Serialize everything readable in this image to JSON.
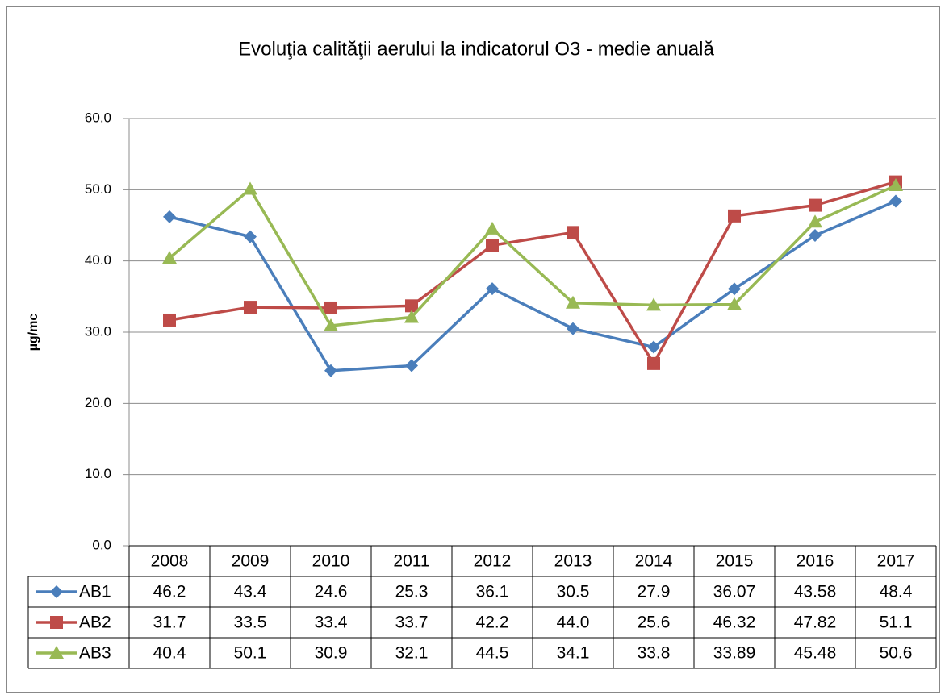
{
  "chart_data": {
    "type": "line",
    "title": "Evoluţia calităţii aerului la indicatorul O3 - medie anuală",
    "y_label": "µg/mc",
    "categories": [
      "2008",
      "2009",
      "2010",
      "2011",
      "2012",
      "2013",
      "2014",
      "2015",
      "2016",
      "2017"
    ],
    "series": [
      {
        "name": "AB1",
        "color": "#4a7ebb",
        "values": [
          46.2,
          43.4,
          24.6,
          25.3,
          36.1,
          30.5,
          27.9,
          36.07,
          43.58,
          48.4
        ],
        "value_labels": [
          "46.2",
          "43.4",
          "24.6",
          "25.3",
          "36.1",
          "30.5",
          "27.9",
          "36.07",
          "43.58",
          "48.4"
        ]
      },
      {
        "name": "AB2",
        "color": "#be4b48",
        "values": [
          31.7,
          33.5,
          33.4,
          33.7,
          42.2,
          44,
          25.6,
          46.32,
          47.82,
          51.1
        ],
        "value_labels": [
          "31.7",
          "33.5",
          "33.4",
          "33.7",
          "42.2",
          "44.0",
          "25.6",
          "46.32",
          "47.82",
          "51.1"
        ]
      },
      {
        "name": "AB3",
        "color": "#98b954",
        "values": [
          40.4,
          50.1,
          30.9,
          32.1,
          44.5,
          34.1,
          33.8,
          33.89,
          45.48,
          50.6
        ],
        "value_labels": [
          "40.4",
          "50.1",
          "30.9",
          "32.1",
          "44.5",
          "34.1",
          "33.8",
          "33.89",
          "45.48",
          "50.6"
        ]
      }
    ],
    "ylim": [
      0,
      60
    ],
    "yticks": [
      {
        "value": 0,
        "label": "0.0"
      },
      {
        "value": 10,
        "label": "10.0"
      },
      {
        "value": 20,
        "label": "20.0"
      },
      {
        "value": 30,
        "label": "30.0"
      },
      {
        "value": 40,
        "label": "40.0"
      },
      {
        "value": 50,
        "label": "50.0"
      },
      {
        "value": 60,
        "label": "60.0"
      }
    ],
    "grid": true
  }
}
